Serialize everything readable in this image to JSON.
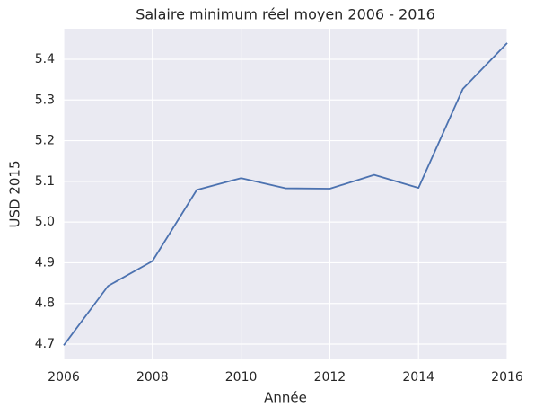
{
  "chart_data": {
    "type": "line",
    "title": "Salaire minimum réel moyen 2006 - 2016",
    "x_label": "Année",
    "y_label": "USD 2015",
    "x": [
      2006,
      2007,
      2008,
      2009,
      2010,
      2011,
      2012,
      2013,
      2014,
      2015,
      2016
    ],
    "series": [
      {
        "name": "USD 2015",
        "color": "#4c72b0",
        "values": [
          4.697,
          4.843,
          4.904,
          5.079,
          5.108,
          5.083,
          5.082,
          5.116,
          5.084,
          5.327,
          5.44
        ]
      }
    ],
    "xlim": [
      2006,
      2016
    ],
    "xticks": [
      2006,
      2008,
      2010,
      2012,
      2014,
      2016
    ],
    "ylim": [
      4.6625,
      5.475
    ],
    "yticks": [
      4.7,
      4.8,
      4.9,
      {
        "value": 5.0,
        "label": "5.0"
      },
      5.1,
      5.2,
      5.3,
      5.4
    ],
    "grid": true
  }
}
